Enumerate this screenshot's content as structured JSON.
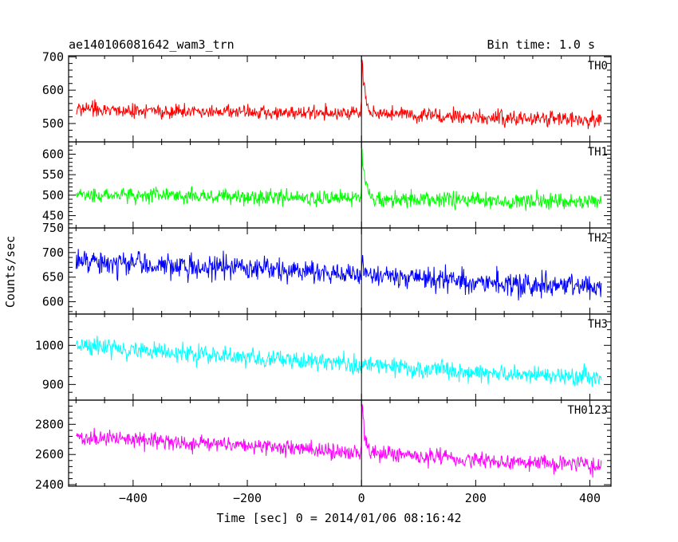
{
  "header": {
    "title": "ae140106081642_wam3_trn",
    "bin_time": "Bin time: 1.0 s"
  },
  "chart_data": {
    "type": "line",
    "xlabel": "Time [sec] 0 = 2014/01/06 08:16:42",
    "ylabel": "Counts/sec",
    "xlim": [
      -513,
      437
    ],
    "x_ticks": [
      -400,
      -200,
      0,
      200,
      400
    ],
    "x_tick_labels": [
      "−400",
      "−200",
      "0",
      "200",
      "400"
    ],
    "x_range": [
      -500,
      420
    ],
    "bin_time_s": 1.0,
    "grid": false,
    "panels": [
      {
        "name": "TH0",
        "color": "#ff0000",
        "ylim": [
          445,
          703
        ],
        "y_ticks": [
          500,
          600,
          700
        ],
        "y_tick_labels": [
          "500",
          "600",
          "700"
        ],
        "trend": [
          [
            -500,
            540
          ],
          [
            -250,
            535
          ],
          [
            0,
            530
          ],
          [
            200,
            520
          ],
          [
            420,
            510
          ]
        ],
        "noise_amplitude": 25,
        "burst": {
          "peak_time": 1,
          "peak_value": 700,
          "width_s": 5
        },
        "clip": true
      },
      {
        "name": "TH1",
        "color": "#00ff00",
        "ylim": [
          420,
          630
        ],
        "y_ticks": [
          450,
          500,
          550,
          600
        ],
        "y_tick_labels": [
          "450",
          "500",
          "550",
          "600"
        ],
        "trend": [
          [
            -500,
            500
          ],
          [
            -250,
            497
          ],
          [
            0,
            492
          ],
          [
            200,
            488
          ],
          [
            420,
            485
          ]
        ],
        "noise_amplitude": 22,
        "burst": {
          "peak_time": 1,
          "peak_value": 620,
          "width_s": 6
        },
        "clip": true
      },
      {
        "name": "TH2",
        "color": "#0000ff",
        "ylim": [
          575,
          750
        ],
        "y_ticks": [
          600,
          650,
          700,
          750
        ],
        "y_tick_labels": [
          "600",
          "650",
          "700",
          "750"
        ],
        "trend": [
          [
            -500,
            682
          ],
          [
            -250,
            670
          ],
          [
            0,
            655
          ],
          [
            200,
            640
          ],
          [
            420,
            632
          ]
        ],
        "noise_amplitude": 27,
        "burst": {
          "peak_time": 1,
          "peak_value": 700,
          "width_s": 4
        },
        "clip": true
      },
      {
        "name": "TH3",
        "color": "#00ffff",
        "ylim": [
          860,
          1080
        ],
        "y_ticks": [
          900,
          1000
        ],
        "y_tick_labels": [
          "900",
          "1000"
        ],
        "trend": [
          [
            -500,
            1000
          ],
          [
            -250,
            972
          ],
          [
            0,
            950
          ],
          [
            200,
            930
          ],
          [
            420,
            915
          ]
        ],
        "noise_amplitude": 26,
        "burst": null,
        "clip": true
      },
      {
        "name": "TH0123",
        "color": "#ff00ff",
        "ylim": [
          2390,
          2960
        ],
        "y_ticks": [
          2400,
          2600,
          2800
        ],
        "y_tick_labels": [
          "2400",
          "2600",
          "2800"
        ],
        "trend": [
          [
            -500,
            2720
          ],
          [
            -250,
            2670
          ],
          [
            0,
            2610
          ],
          [
            200,
            2560
          ],
          [
            420,
            2530
          ]
        ],
        "noise_amplitude": 60,
        "burst": {
          "peak_time": 1,
          "peak_value": 2950,
          "width_s": 5
        },
        "clip": true
      }
    ]
  }
}
